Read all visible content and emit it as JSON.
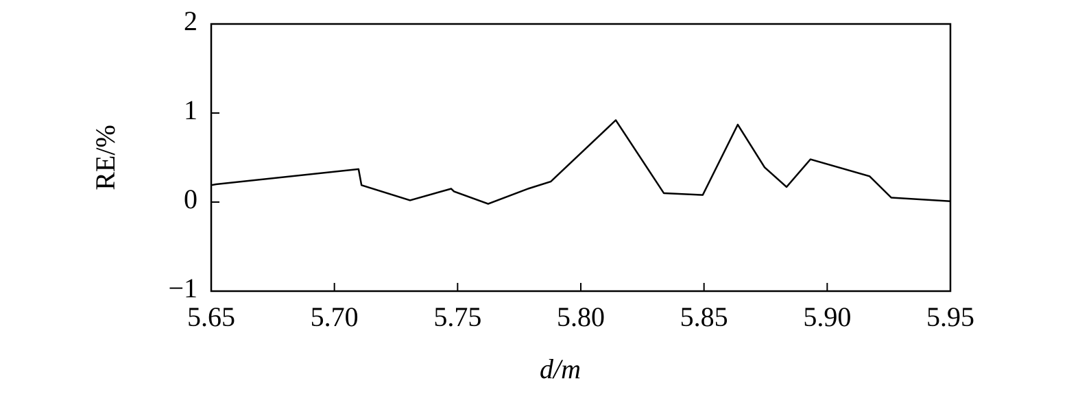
{
  "chart_data": {
    "type": "line",
    "xlabel": "d/m",
    "ylabel": "RE/%",
    "x": [
      5.65,
      5.652,
      5.7098,
      5.711,
      5.7307,
      5.7474,
      5.7485,
      5.7624,
      5.7786,
      5.7878,
      5.8142,
      5.8337,
      5.8495,
      5.8637,
      5.8746,
      5.8835,
      5.8932,
      5.9172,
      5.926,
      5.95
    ],
    "series": [
      {
        "color": "#000000",
        "values": [
          0.19,
          0.2,
          0.37,
          0.19,
          0.02,
          0.15,
          0.12,
          -0.02,
          0.15,
          0.23,
          0.92,
          0.1,
          0.08,
          0.87,
          0.39,
          0.17,
          0.48,
          0.29,
          0.05,
          0.01
        ]
      }
    ],
    "xlim": [
      5.65,
      5.95
    ],
    "xticks": [
      5.65,
      {
        "value": 5.7,
        "label": "5.70"
      },
      5.75,
      {
        "value": 5.8,
        "label": "5.80"
      },
      5.85,
      {
        "value": 5.9,
        "label": "5.90"
      },
      5.95
    ],
    "ylim": [
      -1,
      2
    ],
    "yticks": [
      {
        "value": -1,
        "label": "−1"
      },
      0,
      1,
      2
    ]
  }
}
